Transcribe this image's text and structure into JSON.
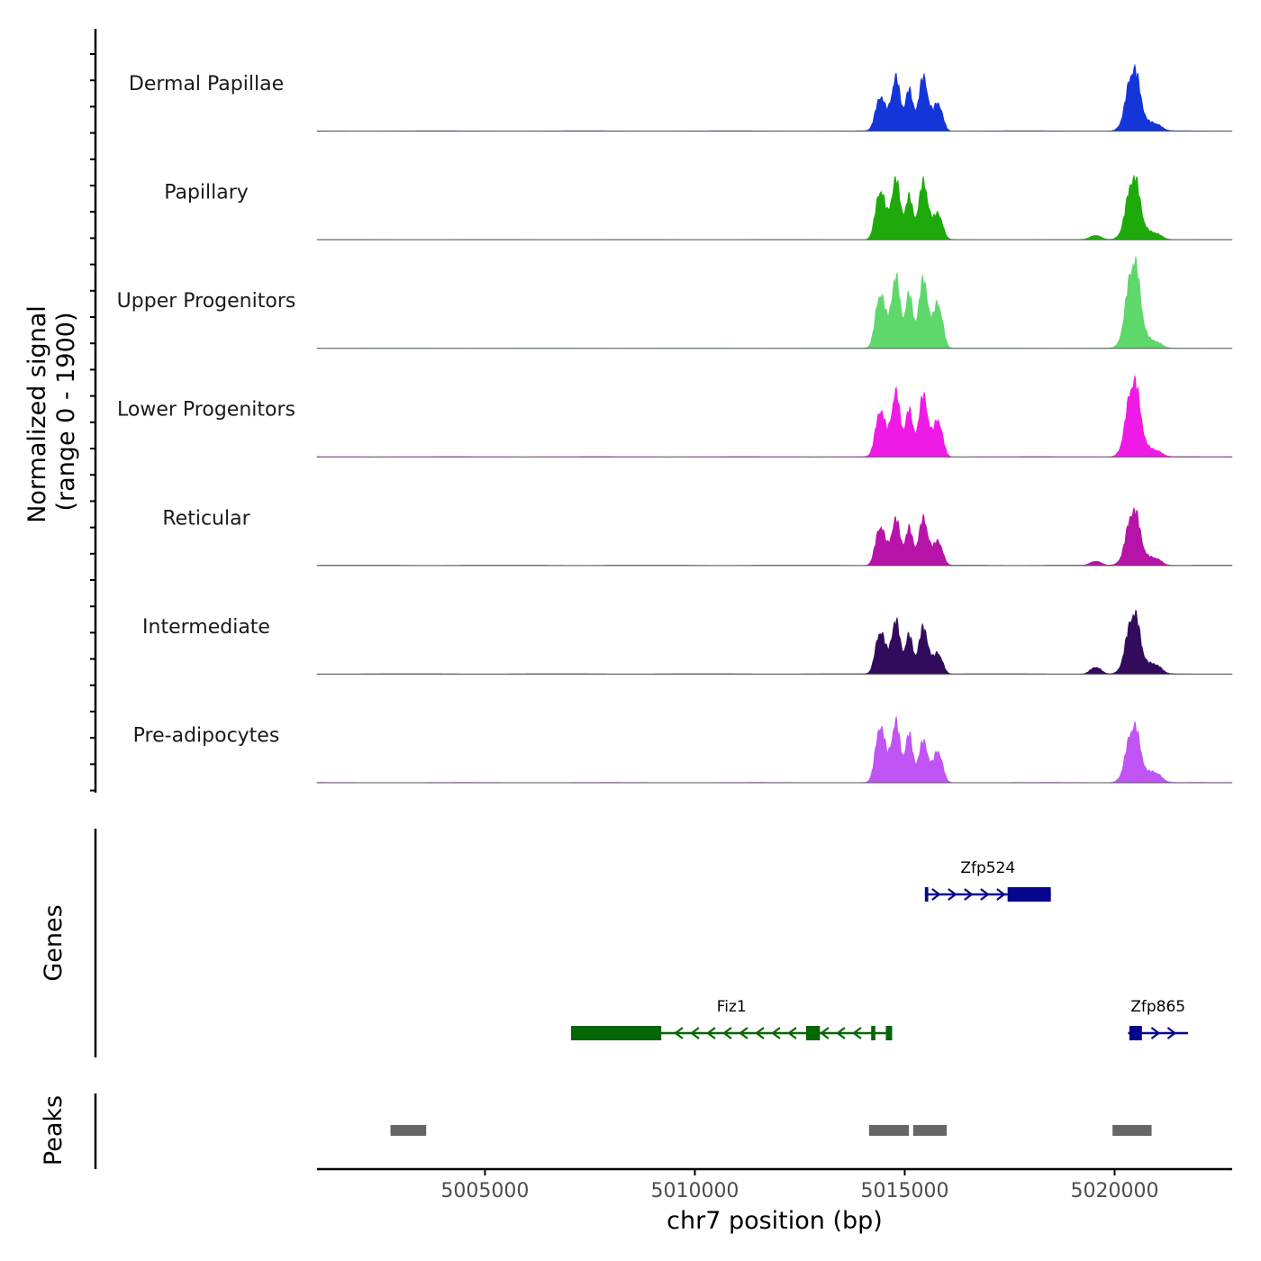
{
  "chart_data": {
    "type": "area",
    "chromosome": "chr7",
    "region": [
      5001000,
      5022800
    ],
    "xlabel": "chr7 position (bp)",
    "xticks": [
      5005000,
      5010000,
      5015000,
      5020000
    ],
    "xtick_labels": [
      "5005000",
      "5010000",
      "5015000",
      "5020000"
    ],
    "ylabel": [
      "Normalized signal",
      "(range 0 - 1900)"
    ],
    "ylim": [
      0,
      1900
    ],
    "tracks": [
      {
        "name": "Dermal Papillae",
        "color": "#1435d8",
        "peaks": [
          [
            5014420,
            1000,
            110
          ],
          [
            5014780,
            1500,
            110
          ],
          [
            5015100,
            1100,
            90
          ],
          [
            5015450,
            1500,
            120
          ],
          [
            5015800,
            800,
            100
          ],
          [
            5020450,
            1800,
            160
          ],
          [
            5020950,
            220,
            150
          ]
        ]
      },
      {
        "name": "Papillary",
        "color": "#1eaa0a",
        "peaks": [
          [
            5014420,
            1450,
            110
          ],
          [
            5014780,
            1700,
            110
          ],
          [
            5015100,
            1150,
            90
          ],
          [
            5015450,
            1600,
            120
          ],
          [
            5015800,
            750,
            100
          ],
          [
            5019550,
            120,
            120
          ],
          [
            5020450,
            1800,
            160
          ],
          [
            5020950,
            200,
            150
          ]
        ]
      },
      {
        "name": "Upper Progenitors",
        "color": "#5ed86a",
        "peaks": [
          [
            5014420,
            1600,
            110
          ],
          [
            5014780,
            2000,
            110
          ],
          [
            5015100,
            1450,
            90
          ],
          [
            5015450,
            1900,
            120
          ],
          [
            5015800,
            1300,
            100
          ],
          [
            5020450,
            2500,
            160
          ],
          [
            5020950,
            200,
            150
          ]
        ]
      },
      {
        "name": "Lower Progenitors",
        "color": "#f01ae6",
        "peaks": [
          [
            5014420,
            1350,
            110
          ],
          [
            5014780,
            1800,
            110
          ],
          [
            5015100,
            1250,
            90
          ],
          [
            5015450,
            1700,
            120
          ],
          [
            5015800,
            1050,
            100
          ],
          [
            5020450,
            2200,
            160
          ],
          [
            5020950,
            200,
            150
          ]
        ]
      },
      {
        "name": "Reticular",
        "color": "#b813a8",
        "peaks": [
          [
            5014420,
            1150,
            110
          ],
          [
            5014780,
            1300,
            110
          ],
          [
            5015100,
            1000,
            90
          ],
          [
            5015450,
            1300,
            120
          ],
          [
            5015800,
            700,
            100
          ],
          [
            5019550,
            120,
            120
          ],
          [
            5020450,
            1600,
            160
          ],
          [
            5020950,
            220,
            150
          ]
        ]
      },
      {
        "name": "Intermediate",
        "color": "#330b5c",
        "peaks": [
          [
            5014420,
            1250,
            110
          ],
          [
            5014780,
            1500,
            110
          ],
          [
            5015100,
            1050,
            90
          ],
          [
            5015450,
            1300,
            120
          ],
          [
            5015800,
            600,
            100
          ],
          [
            5019550,
            200,
            120
          ],
          [
            5020450,
            1750,
            160
          ],
          [
            5020950,
            280,
            150
          ]
        ]
      },
      {
        "name": "Pre-adipocytes",
        "color": "#c054f4",
        "peaks": [
          [
            5014420,
            1650,
            110
          ],
          [
            5014780,
            1700,
            110
          ],
          [
            5015100,
            1300,
            90
          ],
          [
            5015450,
            1150,
            120
          ],
          [
            5015800,
            900,
            100
          ],
          [
            5020450,
            1650,
            160
          ],
          [
            5020950,
            300,
            150
          ]
        ]
      }
    ],
    "genes_track_label": "Genes",
    "genes": [
      {
        "name": "Zfp524",
        "strand": "+",
        "color": "#06068c",
        "start": 5015480,
        "end": 5018480,
        "exons": [
          [
            5015480,
            5015560
          ],
          [
            5017450,
            5018480
          ]
        ]
      },
      {
        "name": "Fiz1",
        "strand": "-",
        "color": "#056605",
        "start": 5007050,
        "end": 5014700,
        "exons": [
          [
            5007050,
            5009200
          ],
          [
            5012650,
            5012980
          ],
          [
            5014200,
            5014300
          ],
          [
            5014550,
            5014700
          ]
        ]
      },
      {
        "name": "Zfp865",
        "strand": "+",
        "color": "#06068c",
        "start": 5020320,
        "end": 5021750,
        "exons": [
          [
            5020350,
            5020650
          ]
        ]
      }
    ],
    "peaks_track_label": "Peaks",
    "peak_regions": [
      [
        5002750,
        5003600
      ],
      [
        5014150,
        5015100
      ],
      [
        5015200,
        5016000
      ],
      [
        5019950,
        5020880
      ]
    ]
  }
}
